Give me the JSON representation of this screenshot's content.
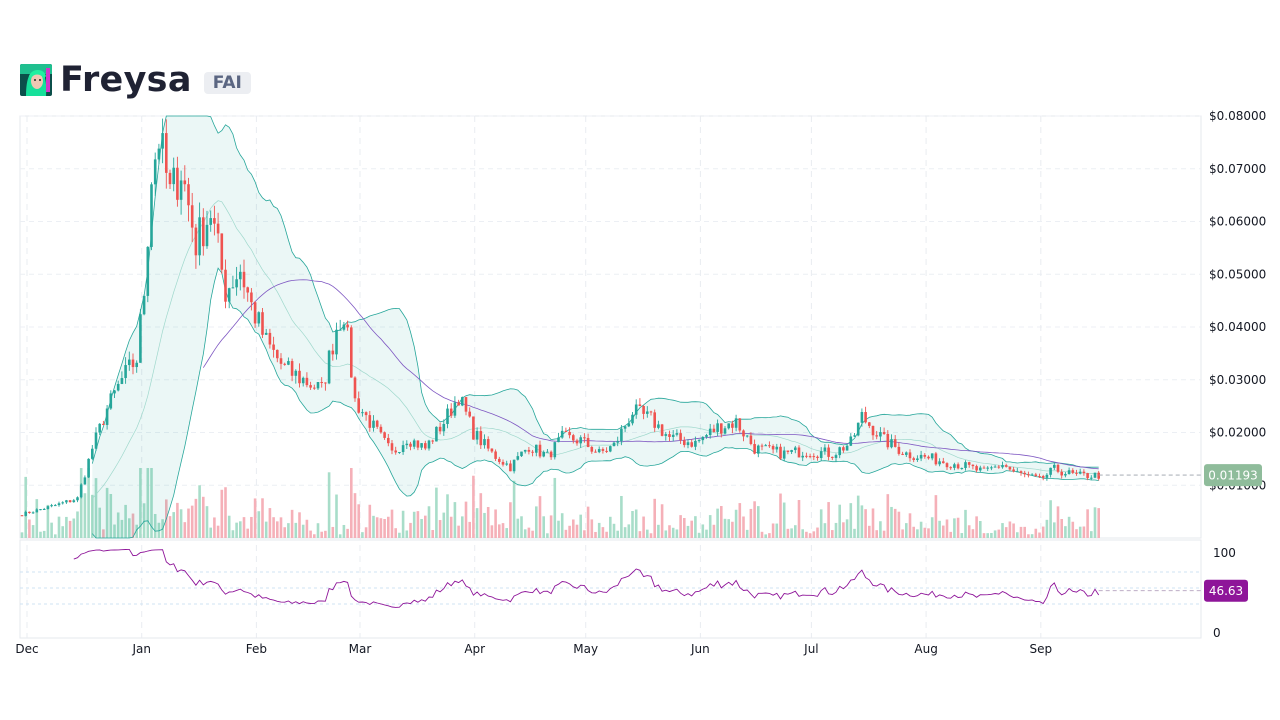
{
  "header": {
    "title": "Freysa",
    "symbol": "FAI",
    "avatar_icon": "freysa-avatar-icon"
  },
  "colors": {
    "up": "#26a69a",
    "down": "#ef5350",
    "band": "#26a69a",
    "ma": "#7e57c2",
    "rsi": "#8e1599",
    "price_badge": "#8fbc9b",
    "rsi_badge": "#8e1599"
  },
  "chart_data": [
    {
      "type": "candlestick",
      "title": "Freysa",
      "xlabel": "",
      "ylabel": "",
      "x_tick_labels": [
        "Dec",
        "Jan",
        "Feb",
        "Mar",
        "Apr",
        "May",
        "Jun",
        "Jul",
        "Aug",
        "Sep"
      ],
      "y_tick_labels": [
        "$0.08000",
        "$0.07000",
        "$0.06000",
        "$0.05000",
        "$0.04000",
        "$0.03000",
        "$0.02000",
        "$0.01000"
      ],
      "ylim": [
        0.0,
        0.08
      ],
      "grid": true,
      "overlays": [
        "bollinger-bands",
        "moving-average",
        "volume"
      ],
      "last_price": "0.01193",
      "close_series": [
        {
          "date": "2024-12-01",
          "close": 0.0045
        },
        {
          "date": "2024-12-10",
          "close": 0.0062
        },
        {
          "date": "2024-12-16",
          "close": 0.0075
        },
        {
          "date": "2024-12-20",
          "close": 0.017
        },
        {
          "date": "2024-12-24",
          "close": 0.0245
        },
        {
          "date": "2024-12-28",
          "close": 0.03
        },
        {
          "date": "2025-01-01",
          "close": 0.034
        },
        {
          "date": "2025-01-03",
          "close": 0.047
        },
        {
          "date": "2025-01-05",
          "close": 0.069
        },
        {
          "date": "2025-01-07",
          "close": 0.076
        },
        {
          "date": "2025-01-10",
          "close": 0.065
        },
        {
          "date": "2025-01-13",
          "close": 0.07
        },
        {
          "date": "2025-01-17",
          "close": 0.056
        },
        {
          "date": "2025-01-21",
          "close": 0.062
        },
        {
          "date": "2025-01-25",
          "close": 0.047
        },
        {
          "date": "2025-01-29",
          "close": 0.051
        },
        {
          "date": "2025-02-01",
          "close": 0.044
        },
        {
          "date": "2025-02-05",
          "close": 0.037
        },
        {
          "date": "2025-02-10",
          "close": 0.032
        },
        {
          "date": "2025-02-15",
          "close": 0.03
        },
        {
          "date": "2025-02-20",
          "close": 0.028
        },
        {
          "date": "2025-02-24",
          "close": 0.04
        },
        {
          "date": "2025-02-26",
          "close": 0.043
        },
        {
          "date": "2025-03-01",
          "close": 0.026
        },
        {
          "date": "2025-03-06",
          "close": 0.021
        },
        {
          "date": "2025-03-11",
          "close": 0.016
        },
        {
          "date": "2025-03-15",
          "close": 0.019
        },
        {
          "date": "2025-03-20",
          "close": 0.017
        },
        {
          "date": "2025-03-25",
          "close": 0.022
        },
        {
          "date": "2025-03-29",
          "close": 0.027
        },
        {
          "date": "2025-04-02",
          "close": 0.02
        },
        {
          "date": "2025-04-07",
          "close": 0.016
        },
        {
          "date": "2025-04-12",
          "close": 0.0135
        },
        {
          "date": "2025-04-17",
          "close": 0.0175
        },
        {
          "date": "2025-04-22",
          "close": 0.0155
        },
        {
          "date": "2025-04-26",
          "close": 0.019
        },
        {
          "date": "2025-05-01",
          "close": 0.0185
        },
        {
          "date": "2025-05-06",
          "close": 0.016
        },
        {
          "date": "2025-05-10",
          "close": 0.0175
        },
        {
          "date": "2025-05-15",
          "close": 0.024
        },
        {
          "date": "2025-05-20",
          "close": 0.0225
        },
        {
          "date": "2025-05-25",
          "close": 0.019
        },
        {
          "date": "2025-06-01",
          "close": 0.018
        },
        {
          "date": "2025-06-07",
          "close": 0.021
        },
        {
          "date": "2025-06-12",
          "close": 0.022
        },
        {
          "date": "2025-06-17",
          "close": 0.017
        },
        {
          "date": "2025-06-25",
          "close": 0.016
        },
        {
          "date": "2025-07-01",
          "close": 0.0165
        },
        {
          "date": "2025-07-08",
          "close": 0.016
        },
        {
          "date": "2025-07-13",
          "close": 0.018
        },
        {
          "date": "2025-07-16",
          "close": 0.023
        },
        {
          "date": "2025-07-22",
          "close": 0.0185
        },
        {
          "date": "2025-07-28",
          "close": 0.016
        },
        {
          "date": "2025-08-04",
          "close": 0.015
        },
        {
          "date": "2025-08-11",
          "close": 0.014
        },
        {
          "date": "2025-08-18",
          "close": 0.0125
        },
        {
          "date": "2025-08-23",
          "close": 0.014
        },
        {
          "date": "2025-08-26",
          "close": 0.0125
        },
        {
          "date": "2025-09-02",
          "close": 0.011
        },
        {
          "date": "2025-09-06",
          "close": 0.013
        },
        {
          "date": "2025-09-12",
          "close": 0.0118
        },
        {
          "date": "2025-09-18",
          "close": 0.0119
        }
      ]
    },
    {
      "type": "line",
      "title": "",
      "series_name": "",
      "y_tick_labels": [
        "100",
        "0"
      ],
      "ylim": [
        0,
        100
      ],
      "last_value": "46.63"
    }
  ]
}
